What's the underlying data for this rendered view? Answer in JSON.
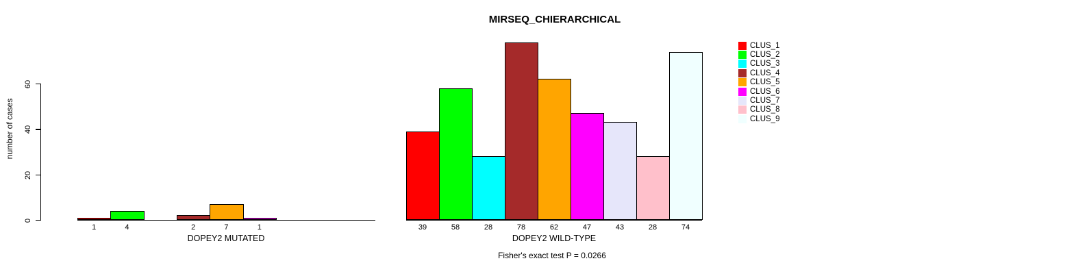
{
  "chart_data": {
    "type": "bar",
    "title": "MIRSEQ_CHIERARCHICAL",
    "ylabel": "number of cases",
    "xlabel": "",
    "yticks": [
      0,
      20,
      40,
      60
    ],
    "ylim": [
      0,
      80
    ],
    "grid": false,
    "legend_position": "right",
    "categories": [
      "DOPEY2 MUTATED",
      "DOPEY2 WILD-TYPE"
    ],
    "series": [
      {
        "name": "CLUS_1",
        "color": "#FF0000",
        "values": [
          1,
          39
        ]
      },
      {
        "name": "CLUS_2",
        "color": "#00FF00",
        "values": [
          4,
          58
        ]
      },
      {
        "name": "CLUS_3",
        "color": "#00FFFF",
        "values": [
          0,
          28
        ]
      },
      {
        "name": "CLUS_4",
        "color": "#A52A2A",
        "values": [
          2,
          78
        ]
      },
      {
        "name": "CLUS_5",
        "color": "#FFA500",
        "values": [
          7,
          62
        ]
      },
      {
        "name": "CLUS_6",
        "color": "#FF00FF",
        "values": [
          1,
          47
        ]
      },
      {
        "name": "CLUS_7",
        "color": "#E6E6FA",
        "values": [
          0,
          43
        ]
      },
      {
        "name": "CLUS_8",
        "color": "#FFC0CB",
        "values": [
          0,
          28
        ]
      },
      {
        "name": "CLUS_9",
        "color": "#F0FFFF",
        "values": [
          0,
          74
        ]
      }
    ],
    "bar_value_labels_note": "values printed under each bar; zero values have no bar and no label",
    "annotation": "Fisher's exact test P = 0.0266"
  }
}
